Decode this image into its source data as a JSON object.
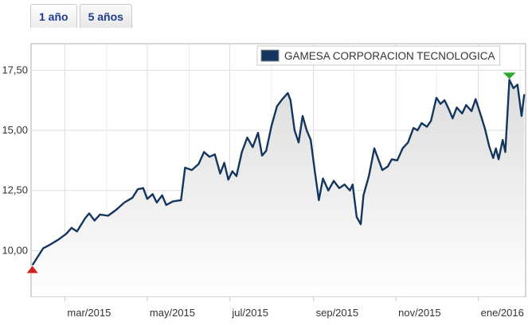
{
  "tabs": [
    {
      "label": "1 año",
      "active": true
    },
    {
      "label": "5 años",
      "active": false
    }
  ],
  "chart_data": {
    "type": "area",
    "series": [
      {
        "name": "GAMESA CORPORACION TECNOLOGICA",
        "color": "#14355e",
        "points": [
          [
            "2015-02-05",
            9.4
          ],
          [
            "2015-02-09",
            9.75
          ],
          [
            "2015-02-13",
            10.1
          ],
          [
            "2015-02-18",
            10.25
          ],
          [
            "2015-02-24",
            10.45
          ],
          [
            "2015-03-02",
            10.7
          ],
          [
            "2015-03-06",
            10.95
          ],
          [
            "2015-03-10",
            10.8
          ],
          [
            "2015-03-16",
            11.35
          ],
          [
            "2015-03-19",
            11.55
          ],
          [
            "2015-03-23",
            11.25
          ],
          [
            "2015-03-27",
            11.5
          ],
          [
            "2015-04-02",
            11.45
          ],
          [
            "2015-04-08",
            11.7
          ],
          [
            "2015-04-14",
            12.0
          ],
          [
            "2015-04-20",
            12.2
          ],
          [
            "2015-04-24",
            12.55
          ],
          [
            "2015-04-28",
            12.6
          ],
          [
            "2015-05-01",
            12.15
          ],
          [
            "2015-05-05",
            12.35
          ],
          [
            "2015-05-08",
            12.0
          ],
          [
            "2015-05-12",
            12.3
          ],
          [
            "2015-05-15",
            11.9
          ],
          [
            "2015-05-20",
            12.05
          ],
          [
            "2015-05-26",
            12.1
          ],
          [
            "2015-05-29",
            13.45
          ],
          [
            "2015-06-03",
            13.35
          ],
          [
            "2015-06-08",
            13.6
          ],
          [
            "2015-06-12",
            14.1
          ],
          [
            "2015-06-16",
            13.9
          ],
          [
            "2015-06-20",
            14.0
          ],
          [
            "2015-06-24",
            13.2
          ],
          [
            "2015-06-27",
            13.65
          ],
          [
            "2015-06-30",
            12.95
          ],
          [
            "2015-07-03",
            13.3
          ],
          [
            "2015-07-06",
            13.1
          ],
          [
            "2015-07-10",
            14.1
          ],
          [
            "2015-07-14",
            14.7
          ],
          [
            "2015-07-18",
            14.3
          ],
          [
            "2015-07-22",
            14.9
          ],
          [
            "2015-07-25",
            13.95
          ],
          [
            "2015-07-28",
            14.15
          ],
          [
            "2015-08-01",
            15.2
          ],
          [
            "2015-08-05",
            16.0
          ],
          [
            "2015-08-09",
            16.3
          ],
          [
            "2015-08-13",
            16.55
          ],
          [
            "2015-08-15",
            16.25
          ],
          [
            "2015-08-18",
            15.0
          ],
          [
            "2015-08-21",
            14.5
          ],
          [
            "2015-08-24",
            15.6
          ],
          [
            "2015-08-27",
            15.0
          ],
          [
            "2015-08-30",
            14.6
          ],
          [
            "2015-09-02",
            13.3
          ],
          [
            "2015-09-05",
            12.1
          ],
          [
            "2015-09-08",
            13.0
          ],
          [
            "2015-09-12",
            12.5
          ],
          [
            "2015-09-16",
            12.9
          ],
          [
            "2015-09-20",
            12.6
          ],
          [
            "2015-09-24",
            12.75
          ],
          [
            "2015-09-28",
            12.5
          ],
          [
            "2015-09-30",
            12.75
          ],
          [
            "2015-10-03",
            11.4
          ],
          [
            "2015-10-06",
            11.1
          ],
          [
            "2015-10-08",
            12.3
          ],
          [
            "2015-10-12",
            13.1
          ],
          [
            "2015-10-16",
            14.25
          ],
          [
            "2015-10-19",
            13.8
          ],
          [
            "2015-10-22",
            13.35
          ],
          [
            "2015-10-26",
            13.5
          ],
          [
            "2015-10-29",
            13.8
          ],
          [
            "2015-11-02",
            13.75
          ],
          [
            "2015-11-06",
            14.25
          ],
          [
            "2015-11-10",
            14.5
          ],
          [
            "2015-11-14",
            15.1
          ],
          [
            "2015-11-17",
            15.0
          ],
          [
            "2015-11-20",
            15.3
          ],
          [
            "2015-11-24",
            15.15
          ],
          [
            "2015-11-27",
            15.4
          ],
          [
            "2015-12-01",
            16.35
          ],
          [
            "2015-12-04",
            16.1
          ],
          [
            "2015-12-07",
            16.25
          ],
          [
            "2015-12-10",
            15.9
          ],
          [
            "2015-12-13",
            15.5
          ],
          [
            "2015-12-16",
            15.95
          ],
          [
            "2015-12-20",
            15.7
          ],
          [
            "2015-12-23",
            16.05
          ],
          [
            "2015-12-27",
            15.8
          ],
          [
            "2015-12-30",
            16.3
          ],
          [
            "2016-01-03",
            15.6
          ],
          [
            "2016-01-06",
            15.05
          ],
          [
            "2016-01-09",
            14.35
          ],
          [
            "2016-01-12",
            13.85
          ],
          [
            "2016-01-14",
            14.25
          ],
          [
            "2016-01-16",
            13.8
          ],
          [
            "2016-01-19",
            14.6
          ],
          [
            "2016-01-21",
            14.1
          ],
          [
            "2016-01-24",
            17.1
          ],
          [
            "2016-01-27",
            16.75
          ],
          [
            "2016-01-30",
            16.9
          ],
          [
            "2016-02-02",
            15.6
          ],
          [
            "2016-02-04",
            16.5
          ]
        ]
      }
    ],
    "y_ticks": [
      "10,00",
      "12,50",
      "15,00",
      "17,50"
    ],
    "y_tick_values": [
      10,
      12.5,
      15,
      17.5
    ],
    "x_ticks": [
      {
        "label": "mar/2015",
        "date": "2015-03-01"
      },
      {
        "label": "may/2015",
        "date": "2015-05-01"
      },
      {
        "label": "jul/2015",
        "date": "2015-07-01"
      },
      {
        "label": "sep/2015",
        "date": "2015-09-01"
      },
      {
        "label": "nov/2015",
        "date": "2015-11-01"
      },
      {
        "label": "ene/2016",
        "date": "2016-01-01"
      }
    ],
    "x_range": [
      "2015-02-04",
      "2016-02-05"
    ],
    "ylim": [
      8.1,
      18.6
    ],
    "minor_gridline_dates": [
      "2015-02-01",
      "2015-04-01",
      "2015-06-01",
      "2015-08-01",
      "2015-10-01",
      "2015-12-01",
      "2016-02-01"
    ],
    "grid": true,
    "legend_position": "top-right",
    "markers": [
      {
        "type": "min",
        "date": "2015-02-05",
        "value": 9.4,
        "color": "#d62020"
      },
      {
        "type": "max",
        "date": "2016-01-24",
        "value": 17.1,
        "color": "#2ea82e"
      }
    ]
  }
}
